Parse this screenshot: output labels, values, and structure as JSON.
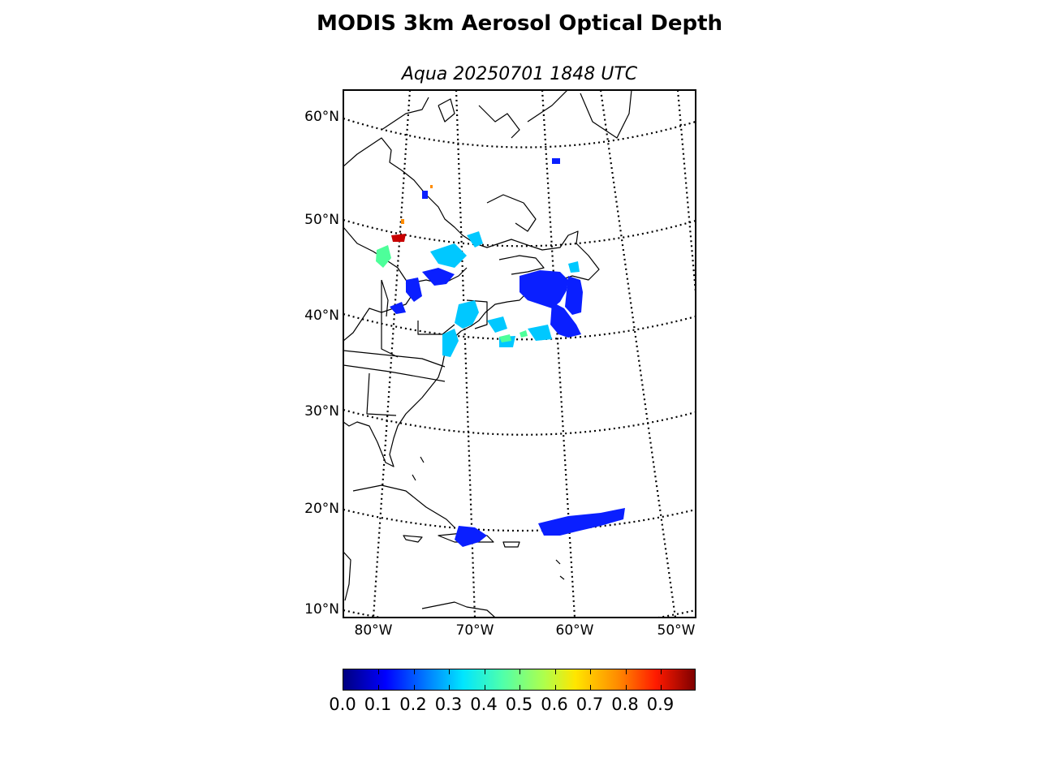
{
  "title": "MODIS 3km Aerosol Optical Depth",
  "subtitle": "Aqua 20250701 1848 UTC",
  "map": {
    "lat_labels": [
      "60°N",
      "50°N",
      "40°N",
      "30°N",
      "20°N",
      "10°N"
    ],
    "lon_labels": [
      "80°W",
      "70°W",
      "60°W",
      "50°W"
    ],
    "projection": "conic",
    "graticule_style": "dotted",
    "extent": {
      "lon_min": -83,
      "lon_max": -49,
      "lat_min": 9,
      "lat_max": 62
    }
  },
  "colorbar": {
    "colormap": "jet",
    "range": [
      0.0,
      1.0
    ],
    "tick_labels": [
      "0.0",
      "0.1",
      "0.2",
      "0.3",
      "0.4",
      "0.5",
      "0.6",
      "0.7",
      "0.8",
      "0.9"
    ]
  },
  "colors": {
    "low_aod": "#0000ff",
    "mid_aod": "#00e5ff",
    "high_aod": "#7f0000",
    "coast": "#000000"
  }
}
